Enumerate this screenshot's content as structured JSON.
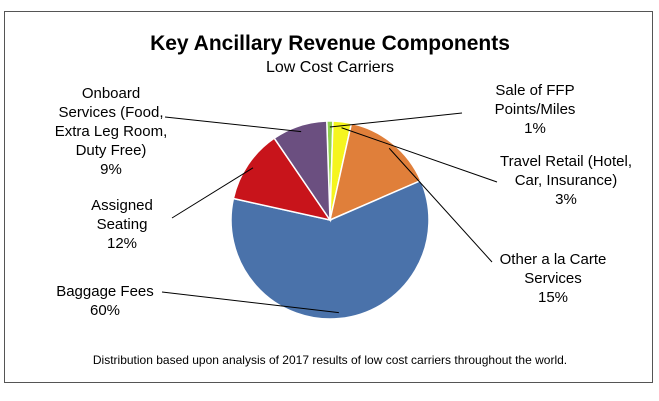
{
  "chart_data": {
    "type": "pie",
    "title": "Key Ancillary Revenue  Components",
    "subtitle": "Low Cost Carriers",
    "footnote": "Distribution based upon analysis of 2017 results of low cost carriers throughout  the world.",
    "slices": [
      {
        "label_lines": [
          "Sale of FFP",
          "Points/Miles"
        ],
        "value": 1,
        "value_label": "1%",
        "color": "#8fd14f"
      },
      {
        "label_lines": [
          "Travel Retail (Hotel,",
          "Car, Insurance)"
        ],
        "value": 3,
        "value_label": "3%",
        "color": "#f5f51f"
      },
      {
        "label_lines": [
          "Other a la Carte",
          "Services"
        ],
        "value": 15,
        "value_label": "15%",
        "color": "#e07f3a"
      },
      {
        "label_lines": [
          "Baggage Fees"
        ],
        "value": 60,
        "value_label": "60%",
        "color": "#4a72aa"
      },
      {
        "label_lines": [
          "Assigned",
          "Seating"
        ],
        "value": 12,
        "value_label": "12%",
        "color": "#c8141b"
      },
      {
        "label_lines": [
          "Onboard",
          "Services (Food,",
          "Extra Leg Room,",
          "Duty Free)"
        ],
        "value": 9,
        "value_label": "9%",
        "color": "#6b4f80"
      }
    ]
  }
}
